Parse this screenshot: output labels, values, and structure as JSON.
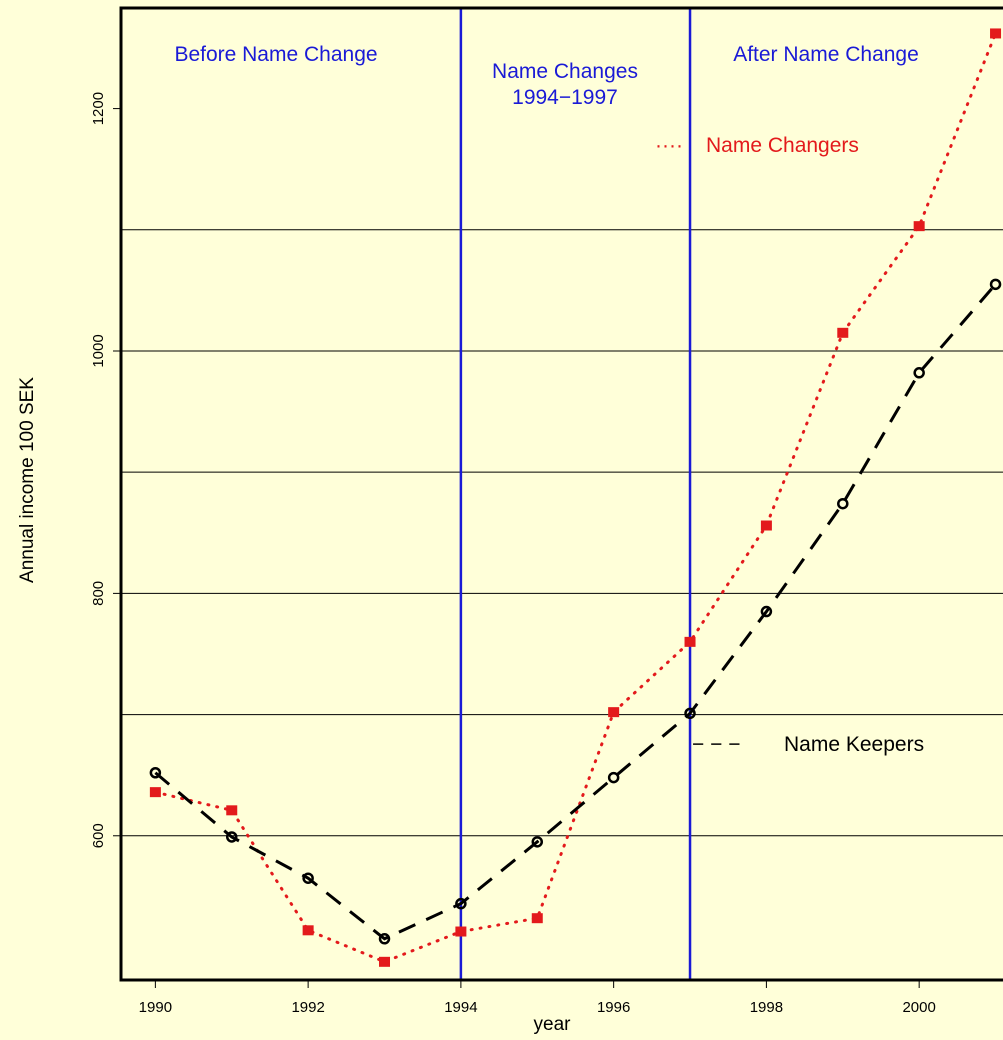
{
  "chart_data": {
    "type": "line",
    "xlabel": "year",
    "ylabel": "Annual income 100 SEK",
    "xlim": [
      1989.55,
      2001.15
    ],
    "ylim": [
      481,
      1283
    ],
    "x_ticks": [
      1990,
      1992,
      1994,
      1996,
      1998,
      2000
    ],
    "y_ticks": [
      600,
      800,
      1000,
      1200
    ],
    "gridlines_y": [
      600,
      700,
      800,
      900,
      1000,
      1100
    ],
    "vlines": [
      1994,
      1997
    ],
    "x": [
      1990,
      1991,
      1992,
      1993,
      1994,
      1995,
      1996,
      1997,
      1998,
      1999,
      2000,
      2001
    ],
    "series": [
      {
        "name": "Name Changers",
        "color": "#e31a1c",
        "line_style": "dotted",
        "marker": "square",
        "values": [
          636,
          621,
          522,
          496,
          521,
          532,
          702,
          760,
          856,
          1015,
          1103,
          1262
        ]
      },
      {
        "name": "Name Keepers",
        "color": "#000000",
        "line_style": "dashed",
        "marker": "circle",
        "values": [
          652,
          599,
          565,
          515,
          544,
          595,
          648,
          701,
          785,
          874,
          982,
          1055
        ]
      }
    ],
    "regions": [
      {
        "lines": [
          "Before Name Change"
        ]
      },
      {
        "lines": [
          "Name Changes",
          "1994−1997"
        ]
      },
      {
        "lines": [
          "After Name Change"
        ]
      }
    ],
    "legend": [
      {
        "symbol": "····",
        "label": "Name Changers",
        "color": "#e31a1c"
      },
      {
        "symbol": "− − −",
        "label": "Name Keepers",
        "color": "#000000"
      }
    ],
    "region_color": "#1a1ad6",
    "background": "#ffffd9"
  }
}
